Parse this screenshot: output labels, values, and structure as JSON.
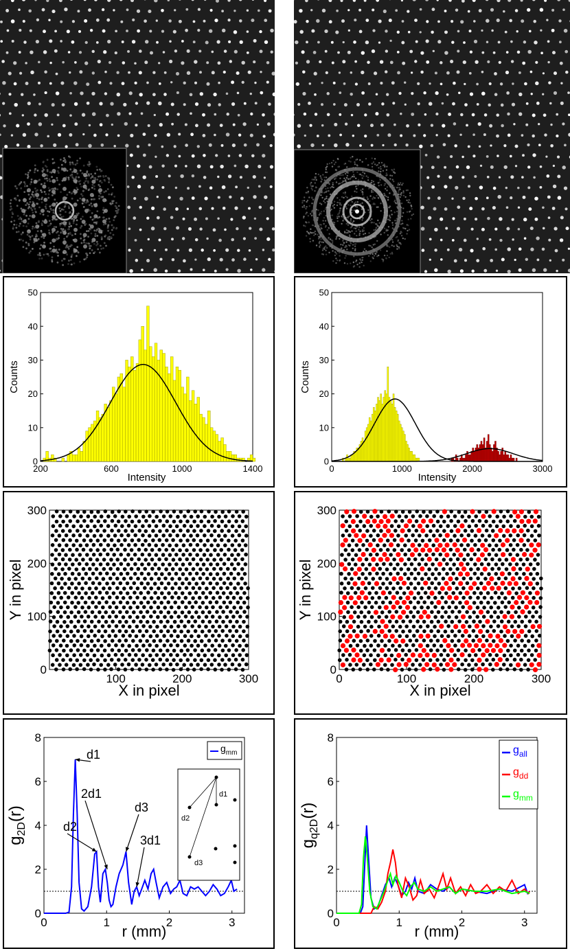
{
  "photos": {
    "left": {
      "kind": "hexagonal lattice micrograph",
      "inset": "FFT with six-fold spots"
    },
    "right": {
      "kind": "lattice micrograph",
      "inset": "FFT with diffuse rings"
    }
  },
  "colors": {
    "yellow": "#ffff00",
    "darkred": "#c00000",
    "blue": "#0000ff",
    "red": "#ff0000",
    "green": "#00ff00",
    "black": "#000000"
  },
  "chart_data": [
    {
      "id": "hist_left",
      "type": "bar",
      "xlabel": "Intensity",
      "ylabel": "Counts",
      "xlim": [
        200,
        1400
      ],
      "ylim": [
        0,
        50
      ],
      "xticks": [
        200,
        600,
        1000,
        1400
      ],
      "yticks": [
        0,
        10,
        20,
        30,
        40,
        50
      ],
      "bin_start": 215,
      "bin_width": 15,
      "series": [
        {
          "name": "yellow bins",
          "color": "yellow",
          "values": [
            1,
            3,
            1,
            2,
            1,
            0,
            0,
            1,
            0,
            2,
            3,
            2,
            2,
            4,
            3,
            6,
            9,
            10,
            11,
            12,
            15,
            13,
            14,
            17,
            16,
            18,
            22,
            20,
            25,
            26,
            22,
            30,
            28,
            31,
            27,
            29,
            36,
            40,
            33,
            46,
            34,
            31,
            35,
            30,
            33,
            32,
            28,
            26,
            31,
            24,
            28,
            27,
            22,
            20,
            25,
            18,
            21,
            17,
            19,
            14,
            13,
            11,
            15,
            10,
            9,
            8,
            6,
            7,
            5,
            3,
            3,
            2,
            2,
            1,
            1,
            1,
            0,
            1,
            2,
            1
          ]
        }
      ],
      "fits": [
        {
          "name": "gaussian",
          "amp": 28.7,
          "mu": 780,
          "sigma": 185
        }
      ]
    },
    {
      "id": "hist_right",
      "type": "bar",
      "xlabel": "Intensity",
      "ylabel": "Counts",
      "xlim": [
        0,
        3000
      ],
      "ylim": [
        0,
        50
      ],
      "xticks": [
        0,
        1000,
        2000,
        3000
      ],
      "yticks": [
        0,
        10,
        20,
        30,
        40,
        50
      ],
      "bin_start": 150,
      "bin_width": 20,
      "series": [
        {
          "name": "yellow bins",
          "color": "yellow",
          "values": [
            1,
            0,
            1,
            2,
            1,
            1,
            2,
            2,
            3,
            3,
            4,
            4,
            5,
            6,
            7,
            6,
            9,
            10,
            11,
            13,
            12,
            14,
            16,
            15,
            17,
            19,
            18,
            20,
            17,
            19,
            21,
            20,
            28,
            19,
            18,
            17,
            20,
            16,
            15,
            14,
            12,
            11,
            10,
            9,
            8,
            6,
            5,
            4,
            3,
            3,
            2,
            2,
            1,
            1,
            1
          ]
        },
        {
          "name": "dark red bins",
          "color": "darkred",
          "start": 1700,
          "values": [
            1,
            1,
            0,
            2,
            1,
            0,
            1,
            2,
            1,
            1,
            2,
            3,
            2,
            2,
            3,
            4,
            3,
            4,
            5,
            4,
            5,
            6,
            5,
            7,
            4,
            6,
            8,
            5,
            4,
            3,
            5,
            6,
            4,
            3,
            2,
            3,
            4,
            2,
            3,
            2,
            2,
            1,
            2,
            1,
            1,
            0,
            1
          ]
        }
      ],
      "fits": [
        {
          "name": "gaussian yellow",
          "amp": 18.5,
          "mu": 900,
          "sigma": 290
        },
        {
          "name": "gaussian red",
          "amp": 3.8,
          "mu": 2250,
          "sigma": 330
        }
      ]
    },
    {
      "id": "scatter_left",
      "type": "scatter",
      "xlabel": "X in pixel",
      "ylabel": "Y in pixel",
      "xlim": [
        0,
        300
      ],
      "ylim": [
        0,
        300
      ],
      "xticks": [
        100,
        200,
        300
      ],
      "yticks": [
        0,
        100,
        200,
        300
      ],
      "lattice_spacing": 10.4,
      "fraction_red": 0
    },
    {
      "id": "scatter_right",
      "type": "scatter",
      "xlabel": "X in pixel",
      "ylabel": "Y in pixel",
      "xlim": [
        0,
        300
      ],
      "ylim": [
        0,
        300
      ],
      "xticks": [
        0,
        100,
        200,
        300
      ],
      "yticks": [
        0,
        100,
        200,
        300
      ],
      "lattice_spacing": 10.4,
      "fraction_red": 0.28
    },
    {
      "id": "g2d_left",
      "type": "line",
      "xlabel": "r (mm)",
      "ylabel": "g",
      "ylabel_sub": "2D",
      "ylabel_suffix": "(r)",
      "xlim": [
        0,
        3.2
      ],
      "ylim": [
        0,
        8
      ],
      "xticks": [
        0,
        1,
        2,
        3
      ],
      "yticks": [
        0,
        2,
        4,
        6,
        8
      ],
      "baseline": 1,
      "legend": [
        {
          "label": "g",
          "sub": "mm",
          "color": "blue"
        }
      ],
      "annotations": [
        "d1",
        "d2",
        "2d1",
        "d3",
        "3d1"
      ],
      "inset_labels": [
        "d1",
        "d2",
        "d3"
      ],
      "series": [
        {
          "name": "g_mm",
          "color": "blue",
          "x": [
            0,
            0.35,
            0.4,
            0.44,
            0.47,
            0.5,
            0.53,
            0.56,
            0.6,
            0.64,
            0.7,
            0.76,
            0.81,
            0.84,
            0.87,
            0.9,
            0.94,
            0.98,
            1.01,
            1.04,
            1.07,
            1.1,
            1.15,
            1.2,
            1.26,
            1.31,
            1.35,
            1.4,
            1.44,
            1.48,
            1.52,
            1.56,
            1.61,
            1.66,
            1.71,
            1.75,
            1.79,
            1.84,
            1.9,
            1.96,
            2.02,
            2.07,
            2.12,
            2.17,
            2.22,
            2.28,
            2.34,
            2.4,
            2.46,
            2.52,
            2.58,
            2.64,
            2.7,
            2.76,
            2.82,
            2.88,
            2.94,
            2.99,
            3.03,
            3.08
          ],
          "y": [
            0,
            0,
            0.05,
            1.2,
            4.5,
            7.0,
            4.5,
            1.4,
            0.2,
            0.1,
            0.3,
            1.2,
            2.7,
            2.8,
            1.2,
            0.5,
            1.8,
            2.0,
            1.4,
            0.6,
            0.3,
            0.4,
            1.2,
            1.8,
            2.2,
            2.8,
            1.4,
            0.4,
            1.0,
            1.2,
            0.8,
            1.1,
            1.5,
            1.1,
            1.8,
            2.0,
            1.4,
            0.7,
            1.2,
            1.4,
            0.9,
            1.1,
            1.2,
            1.5,
            0.9,
            0.8,
            1.2,
            1.1,
            1.2,
            1.0,
            0.8,
            1.0,
            1.3,
            1.1,
            0.8,
            0.9,
            1.2,
            1.5,
            1.0,
            1.1
          ]
        }
      ]
    },
    {
      "id": "g2d_right",
      "type": "line",
      "xlabel": "r (mm)",
      "ylabel": "g",
      "ylabel_sub": "q2D",
      "ylabel_suffix": "(r)",
      "xlim": [
        0,
        3.2
      ],
      "ylim": [
        0,
        8
      ],
      "xticks": [
        0,
        1,
        2,
        3
      ],
      "yticks": [
        0,
        2,
        4,
        6,
        8
      ],
      "baseline": 1,
      "legend": [
        {
          "label": "g",
          "sub": "all",
          "color": "blue"
        },
        {
          "label": "g",
          "sub": "dd",
          "color": "red"
        },
        {
          "label": "g",
          "sub": "mm",
          "color": "green"
        }
      ],
      "series": [
        {
          "name": "g_all",
          "color": "blue",
          "x": [
            0,
            0.38,
            0.42,
            0.46,
            0.48,
            0.51,
            0.55,
            0.6,
            0.66,
            0.72,
            0.78,
            0.84,
            0.88,
            0.93,
            0.98,
            1.04,
            1.1,
            1.15,
            1.2,
            1.25,
            1.3,
            1.4,
            1.5,
            1.6,
            1.7,
            1.8,
            1.9,
            2.0,
            2.2,
            2.4,
            2.6,
            2.8,
            3.0,
            3.05,
            3.08
          ],
          "y": [
            0,
            0,
            0.3,
            2.8,
            4.0,
            2.6,
            0.7,
            0.2,
            0.3,
            0.8,
            1.3,
            1.6,
            1.2,
            1.6,
            1.3,
            0.8,
            1.0,
            1.4,
            1.1,
            1.6,
            1.0,
            0.9,
            1.3,
            1.1,
            1.0,
            1.2,
            0.9,
            1.1,
            1.0,
            0.9,
            1.1,
            1.0,
            1.3,
            0.9,
            1.0
          ]
        },
        {
          "name": "g_dd",
          "color": "red",
          "x": [
            0,
            0.55,
            0.6,
            0.66,
            0.72,
            0.78,
            0.82,
            0.86,
            0.9,
            0.94,
            0.98,
            1.04,
            1.1,
            1.16,
            1.22,
            1.28,
            1.34,
            1.4,
            1.48,
            1.56,
            1.64,
            1.7,
            1.76,
            1.82,
            1.9,
            1.98,
            2.06,
            2.14,
            2.22,
            2.3,
            2.4,
            2.5,
            2.6,
            2.7,
            2.8,
            2.9,
            3.0,
            3.06,
            3.08
          ],
          "y": [
            0,
            0,
            0.3,
            0.2,
            0.5,
            1.0,
            1.8,
            2.3,
            2.9,
            2.3,
            1.3,
            0.7,
            1.6,
            1.2,
            0.6,
            0.8,
            1.5,
            0.9,
            1.1,
            0.7,
            1.3,
            1.8,
            1.1,
            1.6,
            0.9,
            1.2,
            0.8,
            1.3,
            0.9,
            1.0,
            1.3,
            0.9,
            1.2,
            1.0,
            1.5,
            0.9,
            1.1,
            0.9,
            1.0
          ]
        },
        {
          "name": "g_mm",
          "color": "green",
          "x": [
            0,
            0.36,
            0.4,
            0.43,
            0.46,
            0.49,
            0.53,
            0.58,
            0.64,
            0.7,
            0.76,
            0.82,
            0.86,
            0.9,
            0.95,
            1.0,
            1.06,
            1.12,
            1.18,
            1.24,
            1.3,
            1.4,
            1.5,
            1.6,
            1.7,
            1.8,
            1.9,
            2.0,
            2.2,
            2.4,
            2.6,
            2.8,
            3.0,
            3.08
          ],
          "y": [
            0,
            0,
            0.4,
            2.5,
            3.5,
            2.6,
            1.0,
            0.3,
            0.2,
            0.6,
            1.0,
            1.5,
            1.8,
            1.3,
            1.7,
            1.4,
            1.0,
            0.8,
            1.2,
            1.4,
            1.1,
            1.0,
            1.2,
            1.0,
            1.1,
            1.2,
            0.9,
            1.1,
            1.0,
            1.0,
            1.1,
            0.9,
            1.0,
            0.9
          ]
        }
      ]
    }
  ]
}
